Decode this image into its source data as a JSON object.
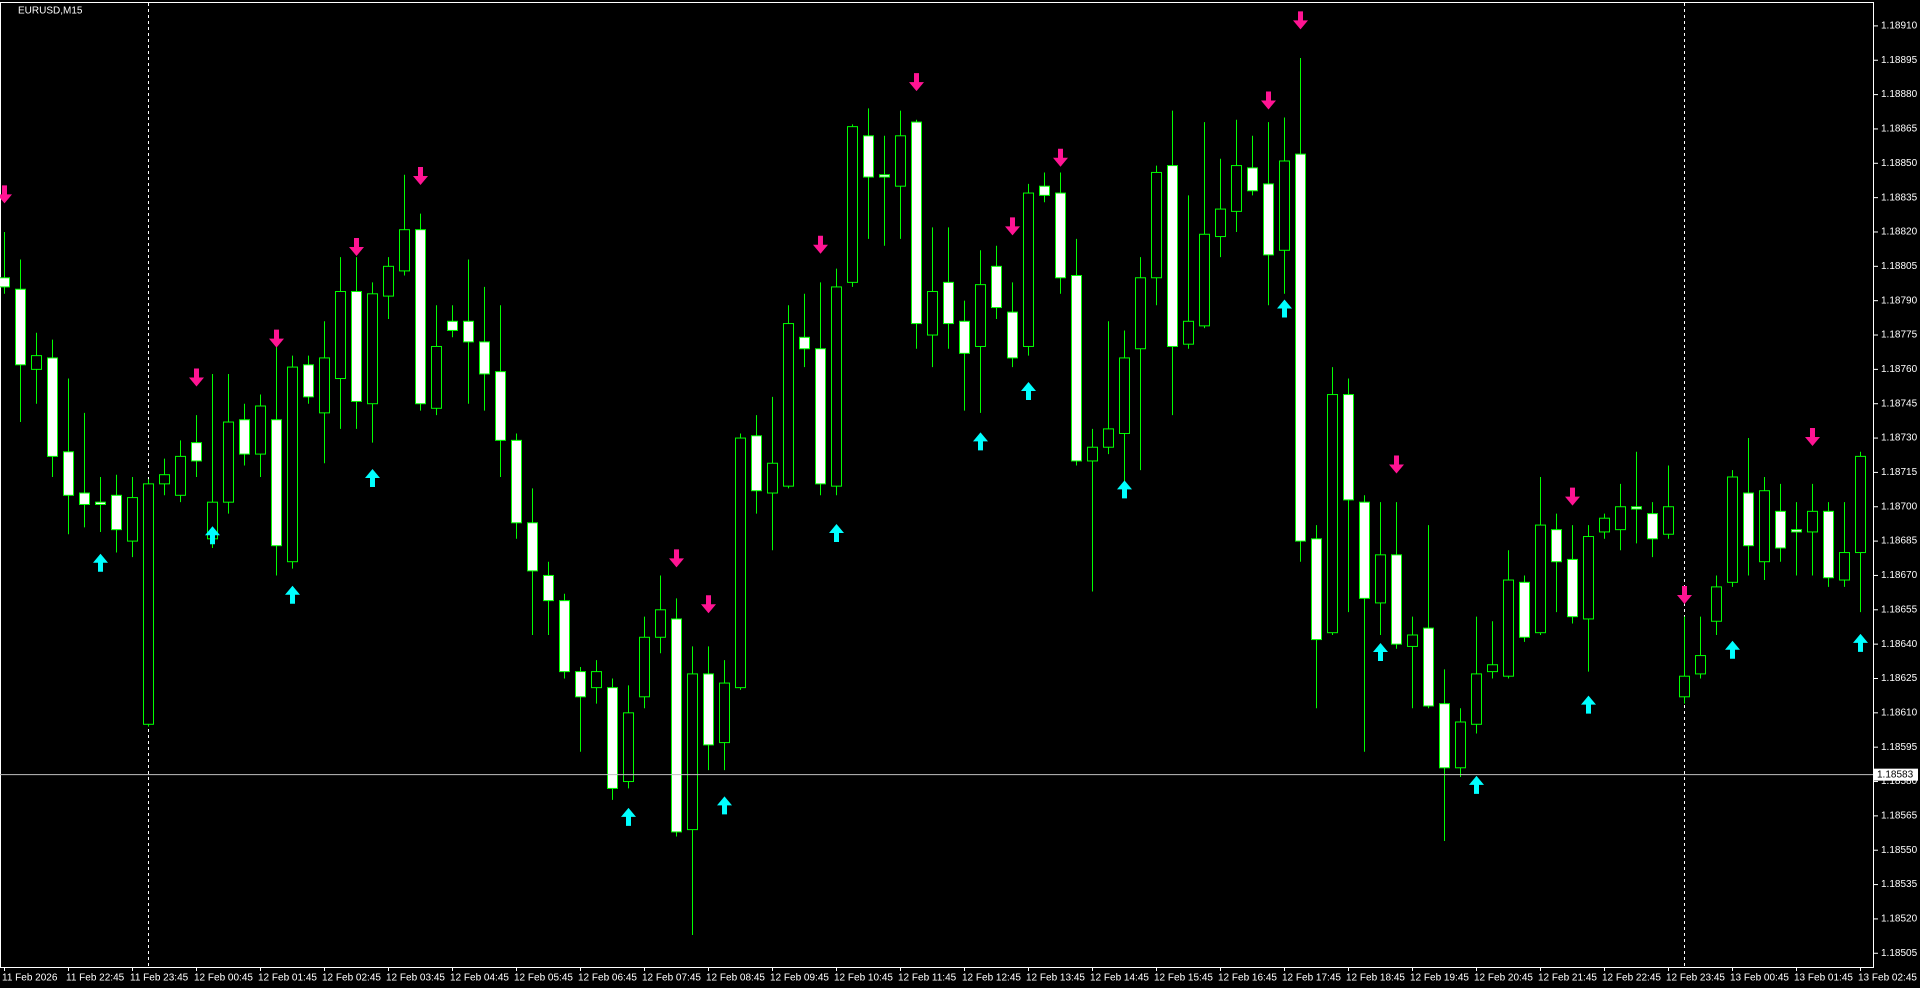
{
  "chart_data": {
    "type": "candlestick",
    "title": "EURUSD,M15",
    "categories": [
      "11 Feb 2026",
      null,
      null,
      null,
      "11 Feb 22:45",
      null,
      null,
      null,
      "11 Feb 23:45",
      null,
      null,
      null,
      "12 Feb 00:45",
      null,
      null,
      null,
      "12 Feb 01:45",
      null,
      null,
      null,
      "12 Feb 02:45",
      null,
      null,
      null,
      "12 Feb 03:45",
      null,
      null,
      null,
      "12 Feb 04:45",
      null,
      null,
      null,
      "12 Feb 05:45",
      null,
      null,
      null,
      "12 Feb 06:45",
      null,
      null,
      null,
      "12 Feb 07:45",
      null,
      null,
      null,
      "12 Feb 08:45",
      null,
      null,
      null,
      "12 Feb 09:45",
      null,
      null,
      null,
      "12 Feb 10:45",
      null,
      null,
      null,
      "12 Feb 11:45",
      null,
      null,
      null,
      "12 Feb 12:45",
      null,
      null,
      null,
      "12 Feb 13:45",
      null,
      null,
      null,
      "12 Feb 14:45",
      null,
      null,
      null,
      "12 Feb 15:45",
      null,
      null,
      null,
      "12 Feb 16:45",
      null,
      null,
      null,
      "12 Feb 17:45",
      null,
      null,
      null,
      "12 Feb 18:45",
      null,
      null,
      null,
      "12 Feb 19:45",
      null,
      null,
      null,
      "12 Feb 20:45",
      null,
      null,
      null,
      "12 Feb 21:45",
      null,
      null,
      null,
      "12 Feb 22:45",
      null,
      null,
      null,
      "12 Feb 23:45",
      null,
      null,
      null,
      "13 Feb 00:45",
      null,
      null,
      null,
      "13 Feb 01:45",
      null,
      null,
      null,
      "13 Feb 02:45"
    ],
    "open": [
      1.188,
      1.18795,
      1.1876,
      1.18765,
      1.18724,
      1.18706,
      1.18702,
      1.18705,
      1.18685,
      1.18605,
      1.1871,
      1.18705,
      1.18728,
      1.18686,
      1.18702,
      1.18738,
      1.18723,
      1.18738,
      1.18676,
      1.18762,
      1.18741,
      1.18756,
      1.18794,
      1.18745,
      1.18792,
      1.18803,
      1.18821,
      1.18743,
      1.18781,
      1.18781,
      1.18772,
      1.18759,
      1.18729,
      1.18693,
      1.1867,
      1.18659,
      1.18628,
      1.18621,
      1.18621,
      1.1858,
      1.18617,
      1.18643,
      1.18651,
      1.18559,
      1.18627,
      1.18597,
      1.18621,
      1.18731,
      1.18706,
      1.18709,
      1.18774,
      1.18769,
      1.18709,
      1.18798,
      1.18862,
      1.18845,
      1.1884,
      1.18868,
      1.18775,
      1.18798,
      1.18781,
      1.1877,
      1.18805,
      1.18785,
      1.1877,
      1.1884,
      1.18837,
      1.18801,
      1.1872,
      1.18726,
      1.18732,
      1.18769,
      1.188,
      1.18849,
      1.18771,
      1.18779,
      1.18818,
      1.18829,
      1.18848,
      1.18841,
      1.18812,
      1.18854,
      1.18686,
      1.18645,
      1.18749,
      1.18702,
      1.18658,
      1.18679,
      1.18639,
      1.18647,
      1.18614,
      1.18586,
      1.18605,
      1.18628,
      1.18626,
      1.18667,
      1.18645,
      1.1869,
      1.18677,
      1.18651,
      1.18689,
      1.1869,
      1.187,
      1.18697,
      1.18688,
      1.18617,
      1.18627,
      1.1865,
      1.18667,
      1.18706,
      1.18676,
      1.18698,
      1.1869,
      1.18689,
      1.18698,
      1.18668,
      1.1868
    ],
    "high": [
      1.1882,
      1.18808,
      1.18776,
      1.18773,
      1.18756,
      1.18741,
      1.18713,
      1.18714,
      1.18713,
      1.18712,
      1.18721,
      1.18729,
      1.1874,
      1.18758,
      1.18758,
      1.18745,
      1.18749,
      1.18774,
      1.18766,
      1.18766,
      1.18781,
      1.18809,
      1.18809,
      1.18798,
      1.18809,
      1.18845,
      1.18828,
      1.18788,
      1.18788,
      1.18808,
      1.18796,
      1.18788,
      1.18732,
      1.18708,
      1.18676,
      1.18662,
      1.1863,
      1.18633,
      1.18625,
      1.18622,
      1.18652,
      1.1867,
      1.1866,
      1.18639,
      1.18639,
      1.18633,
      1.18732,
      1.1874,
      1.18748,
      1.18788,
      1.18793,
      1.18798,
      1.18804,
      1.18867,
      1.18874,
      1.18862,
      1.18873,
      1.18869,
      1.18822,
      1.18822,
      1.1879,
      1.18812,
      1.18814,
      1.18798,
      1.18841,
      1.18846,
      1.18846,
      1.18817,
      1.18734,
      1.18781,
      1.18777,
      1.18809,
      1.18849,
      1.18873,
      1.18836,
      1.18868,
      1.18852,
      1.18869,
      1.18862,
      1.18868,
      1.1887,
      1.18896,
      1.18692,
      1.18761,
      1.18756,
      1.18705,
      1.18702,
      1.18702,
      1.18652,
      1.18692,
      1.18629,
      1.18612,
      1.18652,
      1.1865,
      1.18681,
      1.1867,
      1.18713,
      1.18697,
      1.18692,
      1.18692,
      1.18697,
      1.1871,
      1.18724,
      1.18702,
      1.18718,
      1.18652,
      1.18652,
      1.1867,
      1.18716,
      1.1873,
      1.18713,
      1.1871,
      1.18702,
      1.1871,
      1.18702,
      1.18702,
      1.18724
    ],
    "low": [
      1.18793,
      1.18737,
      1.18745,
      1.18713,
      1.18688,
      1.18691,
      1.18689,
      1.1868,
      1.18678,
      1.18604,
      1.18705,
      1.18702,
      1.18713,
      1.18682,
      1.18697,
      1.18718,
      1.18713,
      1.1867,
      1.18673,
      1.18745,
      1.18719,
      1.18734,
      1.18734,
      1.18728,
      1.18782,
      1.18801,
      1.18742,
      1.1874,
      1.18774,
      1.18745,
      1.18742,
      1.18713,
      1.18686,
      1.18644,
      1.18644,
      1.18625,
      1.18593,
      1.18614,
      1.18572,
      1.18577,
      1.18612,
      1.18636,
      1.18556,
      1.18513,
      1.18585,
      1.18585,
      1.1862,
      1.18697,
      1.18681,
      1.18708,
      1.18761,
      1.18705,
      1.18705,
      1.18796,
      1.18817,
      1.18814,
      1.18817,
      1.18769,
      1.18761,
      1.18769,
      1.18742,
      1.18741,
      1.18782,
      1.18761,
      1.18766,
      1.18833,
      1.18793,
      1.18718,
      1.18663,
      1.18723,
      1.1871,
      1.18716,
      1.18788,
      1.1874,
      1.18769,
      1.18778,
      1.18809,
      1.1882,
      1.18836,
      1.18788,
      1.18793,
      1.18676,
      1.18612,
      1.18644,
      1.18654,
      1.18593,
      1.18644,
      1.18638,
      1.18612,
      1.18612,
      1.18554,
      1.18582,
      1.18601,
      1.18625,
      1.18625,
      1.18641,
      1.18644,
      1.18654,
      1.18649,
      1.18628,
      1.18686,
      1.18681,
      1.18684,
      1.18678,
      1.18686,
      1.18614,
      1.18625,
      1.18644,
      1.18665,
      1.1867,
      1.18668,
      1.18676,
      1.1867,
      1.1867,
      1.18665,
      1.18665,
      1.18654
    ],
    "close": [
      1.18796,
      1.18762,
      1.18766,
      1.18722,
      1.18705,
      1.18701,
      1.18701,
      1.1869,
      1.18704,
      1.1871,
      1.18714,
      1.18722,
      1.1872,
      1.18702,
      1.18737,
      1.18723,
      1.18744,
      1.18683,
      1.18761,
      1.18748,
      1.18765,
      1.18794,
      1.18746,
      1.18793,
      1.18805,
      1.18821,
      1.18745,
      1.1877,
      1.18777,
      1.18772,
      1.18758,
      1.18729,
      1.18693,
      1.18672,
      1.18659,
      1.18628,
      1.18617,
      1.18628,
      1.18577,
      1.1861,
      1.18643,
      1.18655,
      1.18558,
      1.18627,
      1.18596,
      1.18623,
      1.1873,
      1.18707,
      1.18719,
      1.1878,
      1.18769,
      1.1871,
      1.18796,
      1.18866,
      1.18844,
      1.18844,
      1.18862,
      1.1878,
      1.18794,
      1.1878,
      1.18767,
      1.18797,
      1.18787,
      1.18765,
      1.18837,
      1.18836,
      1.188,
      1.1872,
      1.18726,
      1.18734,
      1.18765,
      1.188,
      1.18846,
      1.1877,
      1.18781,
      1.18819,
      1.1883,
      1.18849,
      1.18838,
      1.1881,
      1.18851,
      1.18685,
      1.18642,
      1.18749,
      1.18703,
      1.1866,
      1.18679,
      1.1864,
      1.18644,
      1.18613,
      1.18586,
      1.18606,
      1.18627,
      1.18631,
      1.18668,
      1.18643,
      1.18692,
      1.18676,
      1.18652,
      1.18687,
      1.18695,
      1.187,
      1.18699,
      1.18686,
      1.187,
      1.18626,
      1.18635,
      1.18665,
      1.18713,
      1.18683,
      1.18707,
      1.18682,
      1.18689,
      1.18698,
      1.18669,
      1.1868,
      1.18722
    ],
    "up_color": "#00ff00",
    "down_color": "#ffffff",
    "wick_color": "#00ff00",
    "ylim": [
      1.18499,
      1.1892
    ],
    "yticks": [
      1.18505,
      {
        "value": 1.1852,
        "label": "1.18520"
      },
      1.18535,
      {
        "value": 1.1855,
        "label": "1.18550"
      },
      1.18565,
      {
        "value": 1.1858,
        "label": "1.18580"
      },
      1.18595,
      {
        "value": 1.1861,
        "label": "1.18610"
      },
      1.18625,
      {
        "value": 1.1864,
        "label": "1.18640"
      },
      1.18655,
      {
        "value": 1.1867,
        "label": "1.18670"
      },
      1.18685,
      {
        "value": 1.187,
        "label": "1.18700"
      },
      1.18715,
      {
        "value": 1.1873,
        "label": "1.18730"
      },
      1.18745,
      {
        "value": 1.1876,
        "label": "1.18760"
      },
      1.18775,
      {
        "value": 1.1879,
        "label": "1.18790"
      },
      1.18805,
      {
        "value": 1.1882,
        "label": "1.18820"
      },
      1.18835,
      {
        "value": 1.1885,
        "label": "1.18850"
      },
      1.18865,
      {
        "value": 1.1888,
        "label": "1.18880"
      },
      1.18895,
      {
        "value": 1.1891,
        "label": "1.18910"
      }
    ],
    "bid": 1.18583,
    "period_separators": [
      9,
      105
    ],
    "sell_signals": {
      "color": "#ff1493",
      "index": [
        0,
        12,
        17,
        22,
        26,
        42,
        44,
        51,
        57,
        63,
        66,
        79,
        81,
        87,
        98,
        105,
        113
      ],
      "values": [
        1.18836,
        1.18756,
        1.18773,
        1.18813,
        1.18844,
        1.18677,
        1.18657,
        1.18814,
        1.18885,
        1.18822,
        1.18852,
        1.18877,
        1.18912,
        1.18718,
        1.18704,
        1.18661,
        1.1873
      ]
    },
    "buy_signals": {
      "color": "#00ffff",
      "index": [
        6,
        13,
        18,
        23,
        39,
        45,
        52,
        61,
        64,
        70,
        80,
        86,
        92,
        99,
        108,
        116
      ],
      "values": [
        1.18676,
        1.18688,
        1.18662,
        1.18713,
        1.18565,
        1.1857,
        1.18689,
        1.18729,
        1.18751,
        1.18708,
        1.18787,
        1.18637,
        1.18579,
        1.18614,
        1.18638,
        1.18641
      ]
    }
  }
}
